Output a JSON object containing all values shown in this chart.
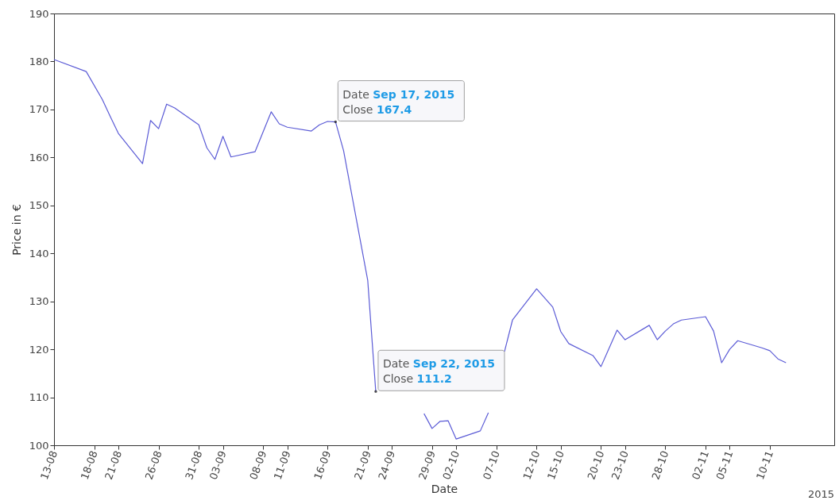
{
  "chart_data": {
    "type": "line",
    "xlabel": "Date",
    "ylabel": "Price in €",
    "x": [
      "2015-08-13",
      "2015-08-17",
      "2015-08-19",
      "2015-08-20",
      "2015-08-21",
      "2015-08-24",
      "2015-08-25",
      "2015-08-26",
      "2015-08-27",
      "2015-08-28",
      "2015-08-31",
      "2015-09-01",
      "2015-09-02",
      "2015-09-03",
      "2015-09-04",
      "2015-09-07",
      "2015-09-09",
      "2015-09-10",
      "2015-09-11",
      "2015-09-14",
      "2015-09-15",
      "2015-09-16",
      "2015-09-17",
      "2015-09-18",
      "2015-09-21",
      "2015-09-22",
      "2015-09-23",
      "2015-09-24",
      "2015-09-25",
      "2015-09-28",
      "2015-09-29",
      "2015-09-30",
      "2015-10-01",
      "2015-10-02",
      "2015-10-05",
      "2015-10-06",
      "2015-10-07",
      "2015-10-08",
      "2015-10-09",
      "2015-10-12",
      "2015-10-14",
      "2015-10-15",
      "2015-10-16",
      "2015-10-19",
      "2015-10-20",
      "2015-10-22",
      "2015-10-23",
      "2015-10-26",
      "2015-10-27",
      "2015-10-28",
      "2015-10-29",
      "2015-10-30",
      "2015-11-02",
      "2015-11-03",
      "2015-11-04",
      "2015-11-05",
      "2015-11-06",
      "2015-11-09",
      "2015-11-10",
      "2015-11-11",
      "2015-11-12"
    ],
    "series": [
      {
        "color": "#5b5bd6",
        "values": [
          180.4,
          177.9,
          172.1,
          168.5,
          165.0,
          158.7,
          167.7,
          166.0,
          171.1,
          170.3,
          166.8,
          162.0,
          159.6,
          164.4,
          160.1,
          161.2,
          169.5,
          167.0,
          166.3,
          165.5,
          166.8,
          167.5,
          167.4,
          161.4,
          134.4,
          111.2,
          null,
          null,
          null,
          106.6,
          103.5,
          105.0,
          105.1,
          101.3,
          103.0,
          106.8,
          null,
          119.5,
          126.1,
          132.6,
          128.8,
          123.7,
          121.2,
          118.7,
          116.4,
          124.0,
          122.0,
          125.0,
          122.0,
          123.8,
          125.3,
          126.1,
          126.8,
          123.8,
          117.2,
          120.0,
          121.8,
          120.3,
          119.7,
          118.0,
          117.2
        ]
      }
    ],
    "xlim": [
      "2015-08-13",
      "2015-11-18"
    ],
    "xticks": [
      {
        "value": "2015-08-13",
        "label": "13-08"
      },
      {
        "value": "2015-08-18",
        "label": "18-08"
      },
      {
        "value": "2015-08-21",
        "label": "21-08"
      },
      {
        "value": "2015-08-26",
        "label": "26-08"
      },
      {
        "value": "2015-08-31",
        "label": "31-08"
      },
      {
        "value": "2015-09-03",
        "label": "03-09"
      },
      {
        "value": "2015-09-08",
        "label": "08-09"
      },
      {
        "value": "2015-09-11",
        "label": "11-09"
      },
      {
        "value": "2015-09-16",
        "label": "16-09"
      },
      {
        "value": "2015-09-21",
        "label": "21-09"
      },
      {
        "value": "2015-09-24",
        "label": "24-09"
      },
      {
        "value": "2015-09-29",
        "label": "29-09"
      },
      {
        "value": "2015-10-02",
        "label": "02-10"
      },
      {
        "value": "2015-10-07",
        "label": "07-10"
      },
      {
        "value": "2015-10-12",
        "label": "12-10"
      },
      {
        "value": "2015-10-15",
        "label": "15-10"
      },
      {
        "value": "2015-10-20",
        "label": "20-10"
      },
      {
        "value": "2015-10-23",
        "label": "23-10"
      },
      {
        "value": "2015-10-28",
        "label": "28-10"
      },
      {
        "value": "2015-11-02",
        "label": "02-11"
      },
      {
        "value": "2015-11-05",
        "label": "05-11"
      },
      {
        "value": "2015-11-10",
        "label": "10-11"
      }
    ],
    "ylim": [
      100,
      190
    ],
    "yticks": [
      100,
      110,
      120,
      130,
      140,
      150,
      160,
      170,
      180,
      190
    ],
    "grid": false,
    "marker": "none",
    "line_style": "solid",
    "annotations": [
      "2015",
      {
        "text": "Date Sep 17, 2015\nClose 167.4",
        "x": "2015-09-17",
        "y": 167.4
      },
      {
        "text": "Date Sep 22, 2015\nClose 111.2",
        "x": "2015-09-22",
        "y": 111.2
      }
    ]
  }
}
